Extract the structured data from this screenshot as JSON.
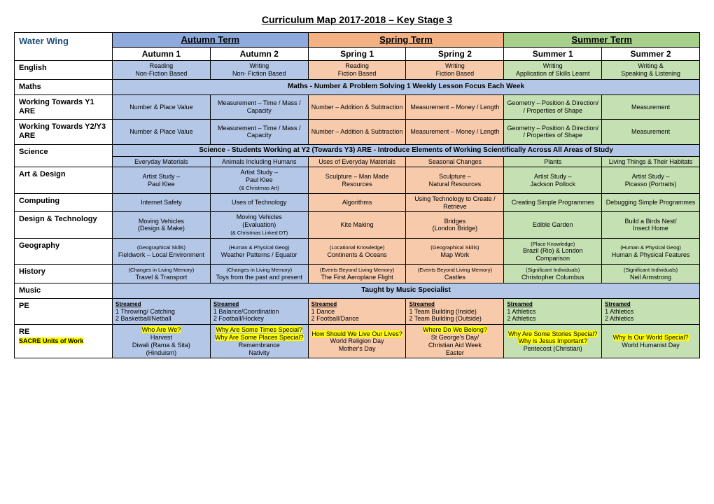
{
  "title": "Curriculum Map 2017-2018 – Key Stage 3",
  "wing": "Water Wing",
  "terms": {
    "autumn": "Autumn Term",
    "spring": "Spring Term",
    "summer": "Summer Term",
    "a1": "Autumn 1",
    "a2": "Autumn 2",
    "s1": "Spring 1",
    "s2": "Spring 2",
    "u1": "Summer 1",
    "u2": "Summer 2"
  },
  "rows": {
    "english": {
      "label": "English",
      "a1": "Reading\nNon-Fiction Based",
      "a2": "Writing\nNon- Fiction Based",
      "s1": "Reading\nFiction Based",
      "s2": "Writing\nFiction Based",
      "u1": "Writing\nApplication of Skills Learnt",
      "u2": "Writing &\nSpeaking & Listening"
    },
    "maths": {
      "label": "Maths",
      "full": "Maths - Number & Problem Solving 1 Weekly Lesson Focus Each Week"
    },
    "wt1": {
      "label": "Working Towards Y1 ARE",
      "a1": "Number & Place Value",
      "a2": "Measurement – Time / Mass / Capacity",
      "s1": "Number – Addition & Subtraction",
      "s2": "Measurement – Money / Length",
      "u1": "Geometry – Position & Direction/ / Properties of Shape",
      "u2": "Measurement"
    },
    "wt2": {
      "label": "Working Towards Y2/Y3 ARE",
      "a1": "Number & Place Value",
      "a2": "Measurement – Time / Mass / Capacity",
      "s1": "Number – Addition & Subtraction",
      "s2": "Measurement – Money / Length",
      "u1": "Geometry – Position & Direction/ / Properties of Shape",
      "u2": "Measurement"
    },
    "science": {
      "label": "Science",
      "full": "Science - Students Working at Y2 (Towards Y3) ARE  - Introduce Elements of Working Scientifically Across All Areas of Study",
      "a1": "Everyday Materials",
      "a2": "Animals Including Humans",
      "s1": "Uses of Everyday Materials",
      "s2": "Seasonal Changes",
      "u1": "Plants",
      "u2": "Living Things & Their Habitats"
    },
    "art": {
      "label": "Art & Design",
      "a1": "Artist Study –\nPaul Klee",
      "a2": "Artist Study –\nPaul Klee",
      "a2s": "(& Christmas Art)",
      "s1": "Sculpture – Man Made Resources",
      "s2": "Sculpture –\nNatural Resources",
      "u1": "Artist Study –\nJackson Pollock",
      "u2": "Artist Study –\nPicasso (Portraits)"
    },
    "computing": {
      "label": "Computing",
      "a1": "Internet Safety",
      "a2": "Uses of Technology",
      "s1": "Algorithms",
      "s2": "Using Technology to Create / Retrieve",
      "u1": "Creating Simple Programmes",
      "u2": "Debugging Simple Programmes"
    },
    "dt": {
      "label": "Design & Technology",
      "a1": "Moving Vehicles\n(Design & Make)",
      "a2": "Moving Vehicles\n(Evaluation)",
      "a2s": "(& Christmas Linked DT)",
      "s1": "Kite Making",
      "s2": "Bridges\n(London Bridge)",
      "u1": "Edible Garden",
      "u2": "Build a Birds Nest/\nInsect Home"
    },
    "geog": {
      "label": "Geography",
      "a1s": "(Geographical Skills)",
      "a1": "Fieldwork – Local Environment",
      "a2s": "(Human & Physical Geog)",
      "a2": "Weather Patterns / Equator",
      "s1s": "(Locational Knowledge)",
      "s1": "Continents & Oceans",
      "s2s": "(Geographical Skills)",
      "s2": "Map Work",
      "u1s": "(Place Knowledge)",
      "u1": "Brazil (Rio) & London Comparison",
      "u2s": "(Human & Physical Geog)",
      "u2": "Human & Physical Features"
    },
    "history": {
      "label": "History",
      "a1s": "(Changes in Living Memory)",
      "a1": "Travel & Transport",
      "a2s": "(Changes in Living Memory)",
      "a2": "Toys from the past and present",
      "s1s": "(Events Beyond Living Memory)",
      "s1": "The First Aeroplane Flight",
      "s2s": "(Events Beyond Living Memory)",
      "s2": "Castles",
      "u1s": "(Significant Individuals)",
      "u1": "Christopher Columbus",
      "u2s": "(Significant Individuals)",
      "u2": "Neil Armstrong"
    },
    "music": {
      "label": "Music",
      "full": "Taught by Music Specialist"
    },
    "pe": {
      "label": "PE",
      "str": "Streamed",
      "a1": "1 Throwing/ Catching\n2 Basketball/Netball",
      "a2": "1 Balance/Coordination\n2 Football/Hockey",
      "s1": "1 Dance\n2 Football/Dance",
      "s2": "1 Team Building (Inside)\n2 Team Building (Outside)",
      "u1": "1 Athletics\n2 Athletics",
      "u2": "1 Athletics\n2 Athletics"
    },
    "re": {
      "label": "RE",
      "sacre": "SACRE Units of Work",
      "a1h": "Who Are We?",
      "a1": "Harvest\nDiwali (Rama & Sita)\n(Hinduism)",
      "a2h": "Why Are Some Times Special? Why Are Some Places Special?",
      "a2": "Remembrance\nNativity",
      "s1h": "How Should We Live Our Lives?",
      "s1": "World Religion Day\nMother's Day",
      "s2h": "Where Do We Belong?",
      "s2": "St George's Day/\nChristian Aid Week\nEaster",
      "u1h": "Why Are Some Stories Special? Why is Jesus Important?",
      "u1": "Pentecost (Christian)",
      "u2h": "Why Is Our World Special?",
      "u2": "World Humanist Day"
    }
  },
  "colors": {
    "blue_head": "#8ea9db",
    "blue_cell": "#b4c7e7",
    "orange_head": "#f4b183",
    "orange_cell": "#f7caac",
    "green_head": "#a8d08d",
    "green_cell": "#c5e0b3",
    "highlight": "#ffff00"
  }
}
